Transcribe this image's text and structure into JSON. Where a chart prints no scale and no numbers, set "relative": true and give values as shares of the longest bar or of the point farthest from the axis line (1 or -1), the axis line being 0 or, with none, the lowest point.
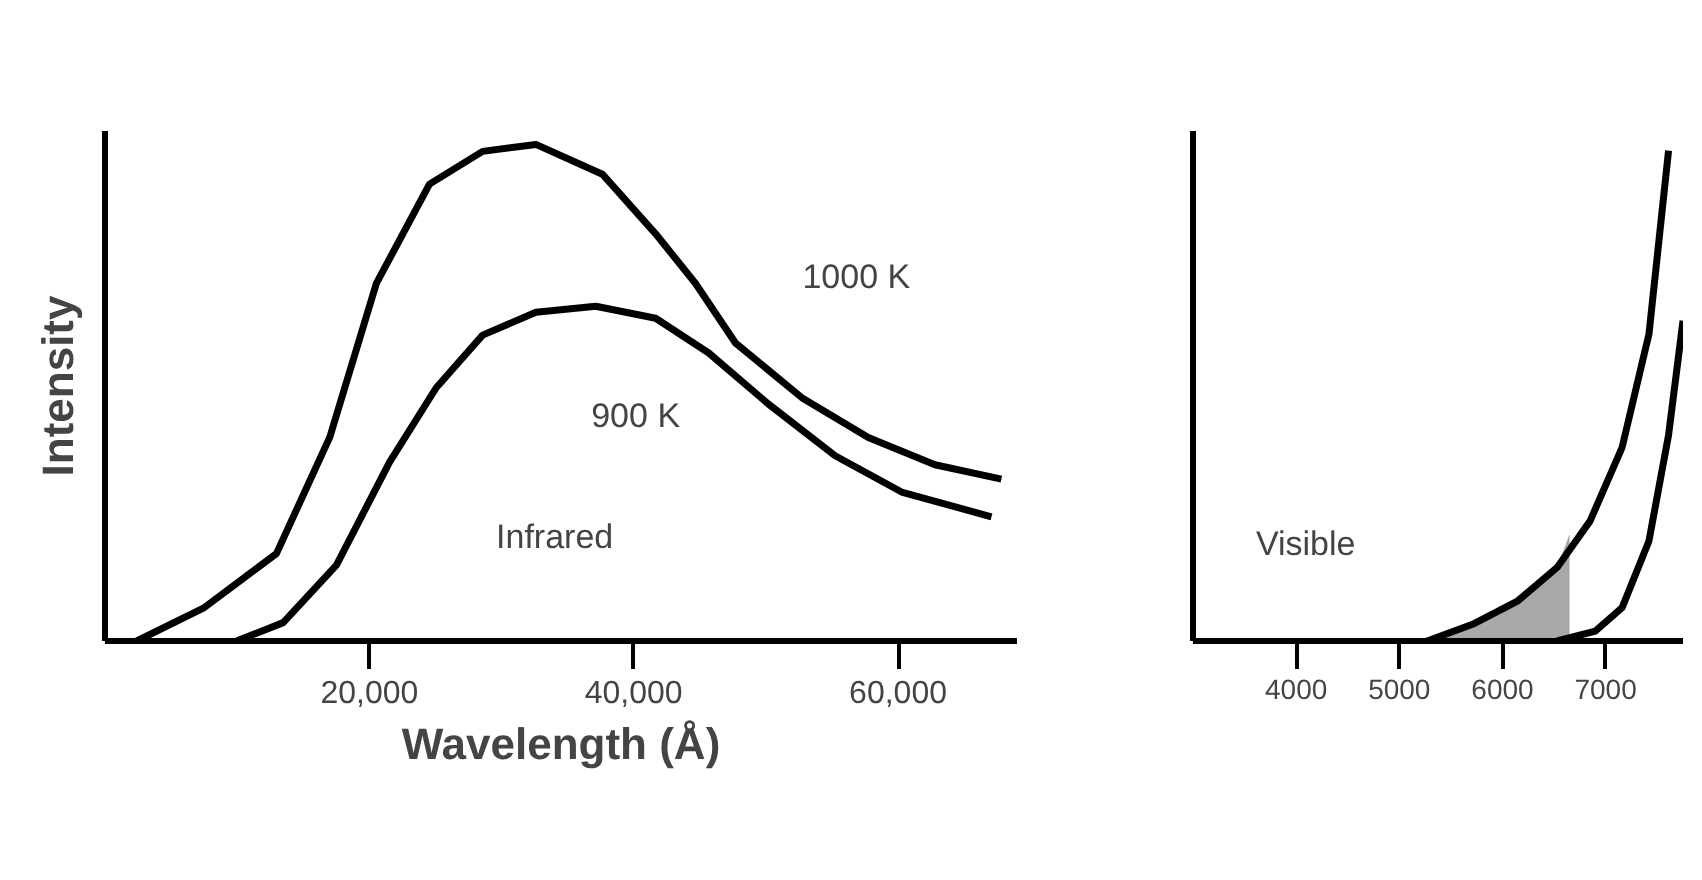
{
  "chart_data": [
    {
      "type": "line",
      "relative": true,
      "xlabel": "Wavelength (Å)",
      "ylabel": "Intensity",
      "xlim": [
        0,
        69000
      ],
      "xticks": [
        {
          "value": 20000,
          "label": "20,000"
        },
        {
          "value": 40000,
          "label": "40,000"
        },
        {
          "value": 60000,
          "label": "60,000"
        }
      ],
      "grid": false,
      "marker": "none",
      "line_style": "solid",
      "series": [
        {
          "name": "1000 K",
          "color": "#000000",
          "x": [
            2400,
            7440,
            12970,
            17000,
            20530,
            24550,
            28570,
            32600,
            37630,
            41660,
            44680,
            47700,
            52720,
            57750,
            62790,
            67820
          ],
          "values": [
            0,
            0.066,
            0.176,
            0.41,
            0.72,
            0.92,
            0.986,
            1.0,
            0.94,
            0.82,
            0.72,
            0.6,
            0.49,
            0.41,
            0.355,
            0.326
          ]
        },
        {
          "name": "900 K",
          "color": "#000000",
          "x": [
            9960,
            13480,
            17510,
            21530,
            25060,
            28570,
            32600,
            37130,
            41660,
            45680,
            50200,
            55240,
            60270,
            67070
          ],
          "values": [
            0,
            0.037,
            0.153,
            0.36,
            0.51,
            0.616,
            0.662,
            0.674,
            0.65,
            0.58,
            0.477,
            0.373,
            0.3,
            0.25
          ]
        }
      ],
      "annotations": [
        "Infrared"
      ]
    },
    {
      "type": "line",
      "relative": true,
      "xlim": [
        3000,
        7750
      ],
      "xticks": [
        4000,
        5000,
        6000,
        7000
      ],
      "grid": false,
      "marker": "none",
      "line_style": "solid",
      "series": [
        {
          "type": "area",
          "color": "#a8a8a8",
          "x": [
            5400,
            5710,
            6150,
            6530,
            6650
          ],
          "values": [
            0.01,
            0.034,
            0.082,
            0.15,
            0.218
          ]
        },
        {
          "color": "#000000",
          "x": [
            5270,
            5710,
            6150,
            6530,
            6850,
            7160,
            7420,
            7610
          ],
          "values": [
            0,
            0.034,
            0.082,
            0.15,
            0.245,
            0.395,
            0.626,
            1.0
          ]
        },
        {
          "color": "#000000",
          "x": [
            6530,
            6900,
            7160,
            7420,
            7610,
            7750
          ],
          "values": [
            0,
            0.02,
            0.068,
            0.204,
            0.42,
            0.653
          ]
        }
      ],
      "annotations": [
        "Visible"
      ]
    }
  ]
}
